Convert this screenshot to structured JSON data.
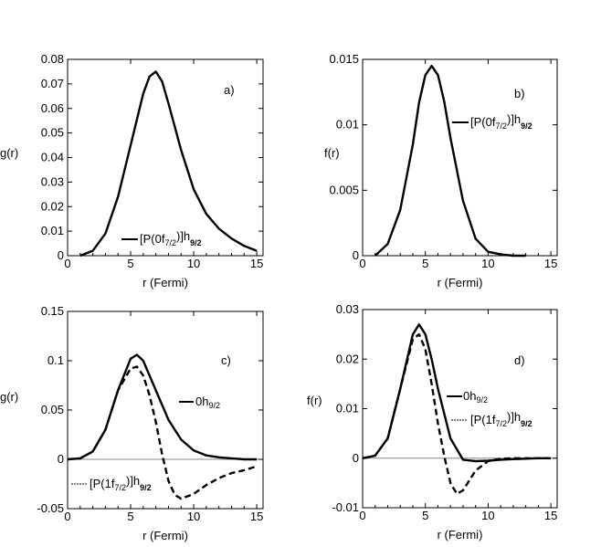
{
  "chart_data": [
    {
      "panel": "a)",
      "type": "line",
      "xlabel": "r (Fermi)",
      "ylabel": "g(r)",
      "xlim": [
        0,
        15.5
      ],
      "ylim": [
        0,
        0.08
      ],
      "xticks": [
        "0",
        "5",
        "10",
        "15"
      ],
      "yticks": [
        "0",
        "0.01",
        "0.02",
        "0.03",
        "0.04",
        "0.05",
        "0.06",
        "0.07",
        "0.08"
      ],
      "baseline": false,
      "series": [
        {
          "name": "[P(0f7/2)]h9/2",
          "legend": {
            "main": "[P(0f",
            "sub": "7/2",
            "mid": ")]h",
            "sub2": "9/2"
          },
          "style": "solid",
          "x": [
            1,
            2,
            3,
            4,
            5,
            6,
            6.5,
            7,
            7.5,
            8,
            9,
            10,
            11,
            12,
            13,
            14,
            15
          ],
          "y": [
            0,
            0.002,
            0.009,
            0.024,
            0.045,
            0.066,
            0.073,
            0.075,
            0.071,
            0.062,
            0.043,
            0.027,
            0.017,
            0.011,
            0.007,
            0.004,
            0.002
          ]
        }
      ]
    },
    {
      "panel": "b)",
      "type": "line",
      "xlabel": "r (Fermi)",
      "ylabel": "f(r)",
      "xlim": [
        0,
        15.5
      ],
      "ylim": [
        0,
        0.015
      ],
      "xticks": [
        "0",
        "5",
        "10",
        "15"
      ],
      "yticks": [
        "0",
        "0.005",
        "0.01",
        "0.015"
      ],
      "baseline": false,
      "series": [
        {
          "name": "[P(0f7/2)]h9/2",
          "legend": {
            "main": "[P(0f",
            "sub": "7/2",
            "mid": ")]h",
            "sub2": "9/2"
          },
          "style": "solid",
          "x": [
            1,
            2,
            3,
            4,
            4.5,
            5,
            5.5,
            6,
            6.5,
            7,
            8,
            9,
            10,
            11,
            12,
            13
          ],
          "y": [
            0,
            0.0009,
            0.0035,
            0.0085,
            0.0117,
            0.0138,
            0.0145,
            0.0138,
            0.0118,
            0.009,
            0.0042,
            0.0013,
            0.0003,
            0.0001,
            0,
            0
          ]
        }
      ]
    },
    {
      "panel": "c)",
      "type": "line",
      "xlabel": "r (Fermi)",
      "ylabel": "g(r)",
      "xlim": [
        0,
        15.5
      ],
      "ylim": [
        -0.05,
        0.15
      ],
      "xticks": [
        "0",
        "5",
        "10",
        "15"
      ],
      "yticks": [
        "-0.05",
        "0",
        "0.05",
        "0.1",
        "0.15"
      ],
      "baseline": true,
      "series": [
        {
          "name": "0h9/2",
          "legend": {
            "main": "0h",
            "sub": "9/2",
            "mid": "",
            "sub2": ""
          },
          "style": "solid",
          "x": [
            0,
            1,
            2,
            3,
            4,
            5,
            5.5,
            6,
            7,
            8,
            9,
            10,
            11,
            12,
            13,
            14,
            15
          ],
          "y": [
            0,
            0.001,
            0.008,
            0.03,
            0.07,
            0.102,
            0.106,
            0.1,
            0.07,
            0.04,
            0.02,
            0.009,
            0.004,
            0.002,
            0.001,
            0,
            0
          ]
        },
        {
          "name": "[P(1f7/2)]h9/2",
          "legend": {
            "main": "[P(1f",
            "sub": "7/2",
            "mid": ")]h",
            "sub2": "9/2"
          },
          "style": "dashed",
          "x": [
            0,
            1,
            2,
            3,
            4,
            5,
            5.5,
            6,
            6.5,
            7,
            7.5,
            8,
            8.5,
            9,
            10,
            11,
            12,
            13,
            14,
            15
          ],
          "y": [
            0,
            0.001,
            0.008,
            0.03,
            0.07,
            0.092,
            0.094,
            0.085,
            0.065,
            0.038,
            0.005,
            -0.022,
            -0.036,
            -0.04,
            -0.035,
            -0.026,
            -0.019,
            -0.014,
            -0.011,
            -0.007
          ]
        }
      ]
    },
    {
      "panel": "d)",
      "type": "line",
      "xlabel": "r (Fermi)",
      "ylabel": "f(r)",
      "xlim": [
        0,
        15.5
      ],
      "ylim": [
        -0.01,
        0.03
      ],
      "xticks": [
        "0",
        "5",
        "10",
        "15"
      ],
      "yticks": [
        "-0.01",
        "0",
        "0.01",
        "0.02",
        "0.03"
      ],
      "baseline": true,
      "series": [
        {
          "name": "0h9/2",
          "legend": {
            "main": "0h",
            "sub": "9/2",
            "mid": "",
            "sub2": ""
          },
          "style": "solid",
          "x": [
            0,
            1,
            2,
            3,
            4,
            4.5,
            5,
            5.5,
            6,
            7,
            8,
            9,
            10,
            11,
            12,
            13,
            14,
            15
          ],
          "y": [
            0,
            0.0005,
            0.004,
            0.014,
            0.025,
            0.027,
            0.025,
            0.02,
            0.014,
            0.004,
            -0.0003,
            -0.0006,
            -0.0005,
            -0.0003,
            -0.0002,
            -0.0001,
            0,
            0
          ]
        },
        {
          "name": "[P(1f7/2)]h9/2",
          "legend": {
            "main": "[P(1f",
            "sub": "7/2",
            "mid": ")]h",
            "sub2": "9/2"
          },
          "style": "dashed",
          "x": [
            0,
            1,
            2,
            3,
            4,
            4.5,
            5,
            5.5,
            6,
            6.5,
            7,
            7.5,
            8,
            9,
            10,
            11,
            12,
            13,
            14,
            15
          ],
          "y": [
            0,
            0.0005,
            0.004,
            0.014,
            0.024,
            0.025,
            0.022,
            0.015,
            0.007,
            0.0005,
            -0.005,
            -0.0072,
            -0.0065,
            -0.0025,
            -0.0006,
            -0.0001,
            0,
            0,
            0,
            0
          ]
        }
      ]
    }
  ]
}
